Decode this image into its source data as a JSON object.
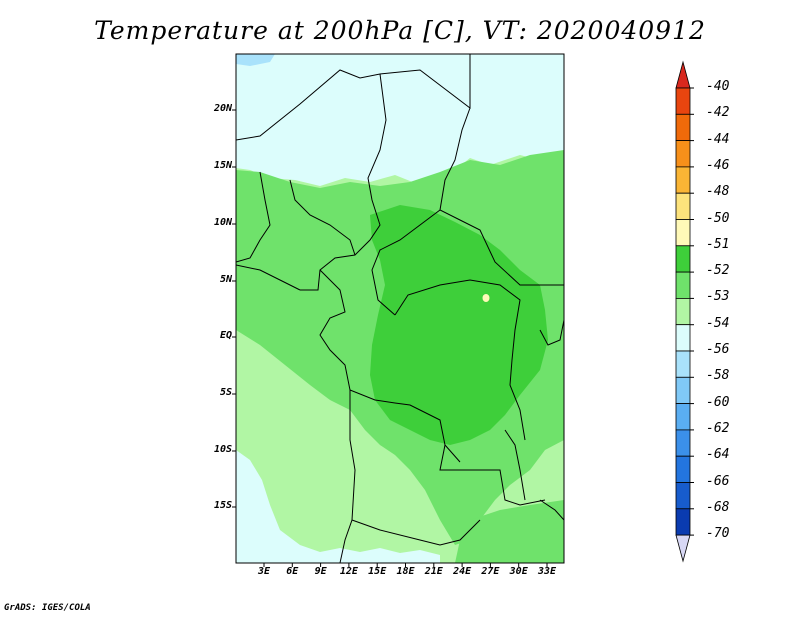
{
  "title": "Temperature at 200hPa [C], VT: 2020040912",
  "footer": "GrADS: IGES/COLA",
  "axes": {
    "lat_labels": [
      "20N",
      "15N",
      "10N",
      "5N",
      "EQ",
      "5S",
      "10S",
      "15S"
    ],
    "lon_labels": [
      "3E",
      "6E",
      "9E",
      "12E",
      "15E",
      "18E",
      "21E",
      "24E",
      "27E",
      "30E",
      "33E"
    ]
  },
  "colorbar": {
    "labels": [
      "-40",
      "-42",
      "-44",
      "-46",
      "-48",
      "-50",
      "-51",
      "-52",
      "-53",
      "-54",
      "-56",
      "-58",
      "-60",
      "-62",
      "-64",
      "-66",
      "-68",
      "-70"
    ],
    "colors": {
      "top_arrow": "#d8281e",
      "bins": [
        "#e8450f",
        "#f06a0a",
        "#f7901a",
        "#fab535",
        "#fde37c",
        "#fff9b8",
        "#3ecf3a",
        "#6fe26b",
        "#b1f6a4",
        "#dcfdfc",
        "#a9e2fb",
        "#80c9f7",
        "#5aaef2",
        "#3b90ea",
        "#2375df",
        "#175ccd",
        "#0a3bb0"
      ],
      "bottom_arrow": "#d8d8f5",
      "map_light_cyan": "#dcfdfc",
      "map_pale_green": "#b1f6a4",
      "map_green": "#6fe26b",
      "map_dark_green": "#3ecf3a",
      "map_blue": "#a9e2fb",
      "map_yellow": "#fff9b8"
    }
  }
}
